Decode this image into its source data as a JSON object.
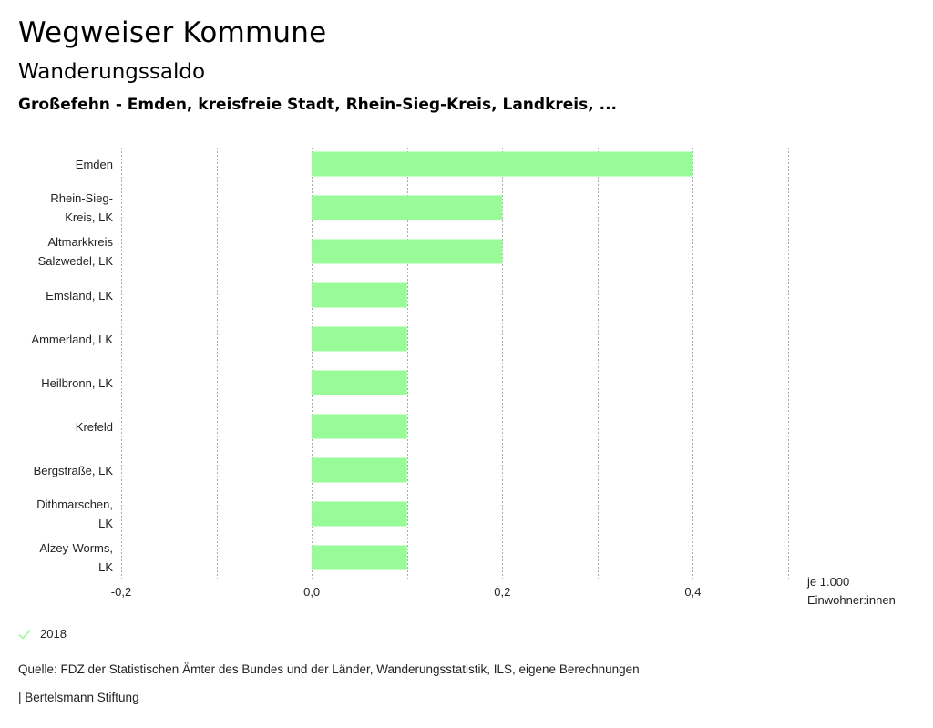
{
  "header": {
    "title": "Wegweiser Kommune",
    "subtitle": "Wanderungssaldo",
    "region": "Großefehn - Emden, kreisfreie Stadt, Rhein-Sieg-Kreis, Landkreis, ..."
  },
  "chart_data": {
    "type": "bar",
    "orientation": "horizontal",
    "title": "Wanderungssaldo",
    "categories": [
      [
        "Emden"
      ],
      [
        "Rhein-Sieg-",
        "Kreis, LK"
      ],
      [
        "Altmarkkreis",
        "Salzwedel, LK"
      ],
      [
        "Emsland, LK"
      ],
      [
        "Ammerland, LK"
      ],
      [
        "Heilbronn, LK"
      ],
      [
        "Krefeld"
      ],
      [
        "Bergstraße, LK"
      ],
      [
        "Dithmarschen,",
        "LK"
      ],
      [
        "Alzey-Worms,",
        "LK"
      ]
    ],
    "series": [
      {
        "name": "2018",
        "color": "#98fb98",
        "values": [
          0.4,
          0.2,
          0.2,
          0.1,
          0.1,
          0.1,
          0.1,
          0.1,
          0.1,
          0.1
        ]
      }
    ],
    "xlim": [
      -0.2,
      0.5
    ],
    "xticks": [
      -0.2,
      -0.1,
      0.0,
      0.1,
      0.2,
      0.3,
      0.4,
      0.5
    ],
    "xtick_labels": [
      {
        "value": -0.2,
        "label": "-0,2"
      },
      {
        "value": 0.0,
        "label": "0,0"
      },
      {
        "value": 0.2,
        "label": "0,2"
      },
      {
        "value": 0.4,
        "label": "0,4"
      }
    ],
    "unit_label": [
      "je 1.000",
      "Einwohner:innen"
    ],
    "grid": true,
    "grid_color": "#aaaaaa"
  },
  "legend": {
    "label": "2018",
    "icon": "check-icon",
    "color": "#98fb98"
  },
  "footer": {
    "source": "Quelle: FDZ der Statistischen Ämter des Bundes und der Länder, Wanderungsstatistik, ILS, eigene Berechnungen",
    "publisher": "| Bertelsmann Stiftung"
  }
}
